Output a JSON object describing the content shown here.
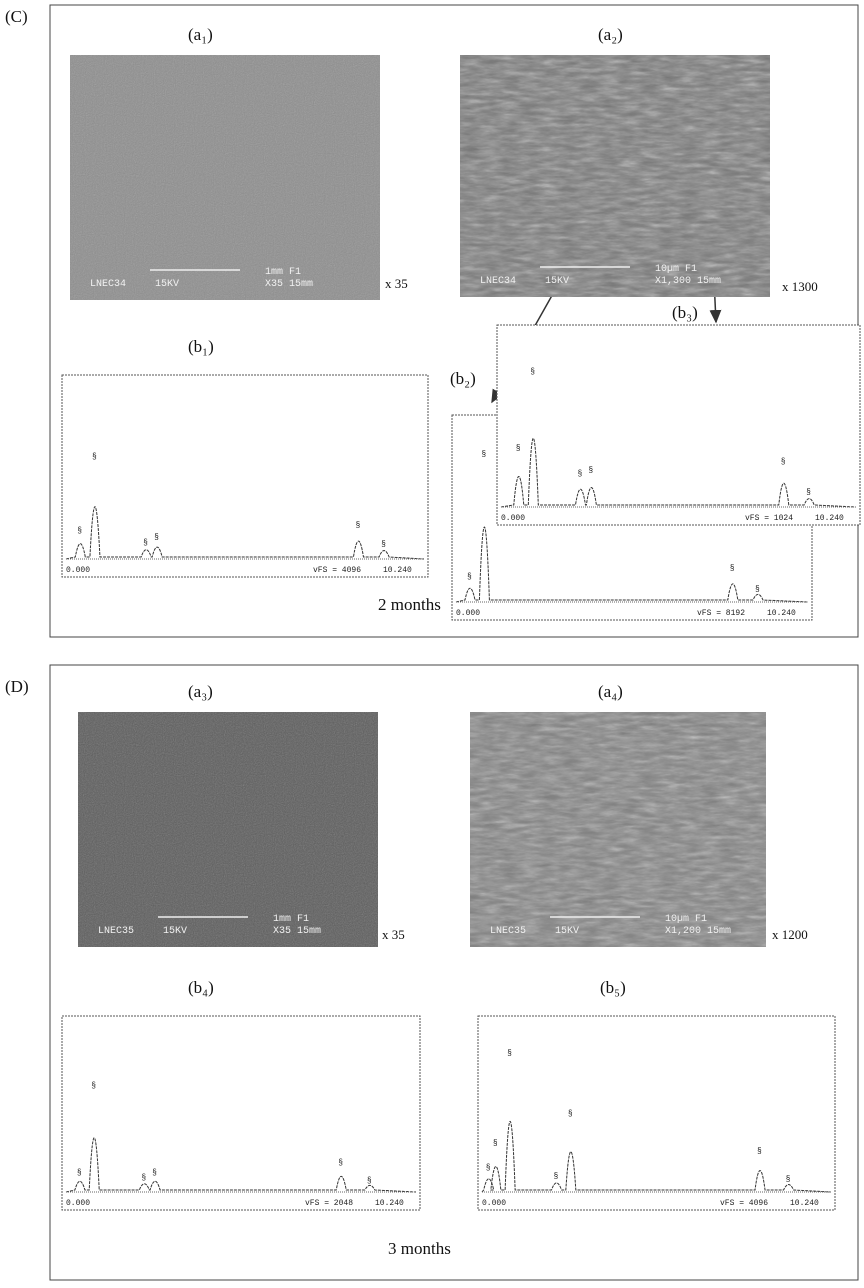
{
  "panels": [
    {
      "label": "(C)",
      "images": [
        {
          "label": "(a₁)",
          "magnification": "x 35",
          "overlay": [
            "LNEC34",
            "15KV",
            "1mm F1",
            "X35 15mm"
          ]
        },
        {
          "label": "(a₂)",
          "magnification": "x 1300",
          "overlay": [
            "LNEC34",
            "15KV",
            "10µm F1",
            "X1,300 15mm"
          ]
        }
      ],
      "spectra": [
        {
          "label": "(b₁)",
          "x_start": "0.000",
          "full_scale": "vFS = 4096",
          "x_end": "10.240"
        },
        {
          "label": "(b₂)",
          "x_start": "0.000",
          "full_scale": "vFS = 8192",
          "x_end": "10.240"
        },
        {
          "label": "(b₃)",
          "x_start": "0.000",
          "full_scale": "vFS = 1024",
          "x_end": "10.240"
        }
      ],
      "note": "2 months"
    },
    {
      "label": "(D)",
      "images": [
        {
          "label": "(a₃)",
          "magnification": "x 35",
          "overlay": [
            "LNEC35",
            "15KV",
            "1mm F1",
            "X35 15mm"
          ]
        },
        {
          "label": "(a₄)",
          "magnification": "x 1200",
          "overlay": [
            "LNEC35",
            "15KV",
            "10µm F1",
            "X1,200 15mm"
          ]
        }
      ],
      "spectra": [
        {
          "label": "(b₄)",
          "x_start": "0.000",
          "full_scale": "vFS = 2048",
          "x_end": "10.240"
        },
        {
          "label": "(b₅)",
          "x_start": "0.000",
          "full_scale": "vFS = 4096",
          "x_end": "10.240"
        }
      ],
      "note": "3 months"
    }
  ]
}
